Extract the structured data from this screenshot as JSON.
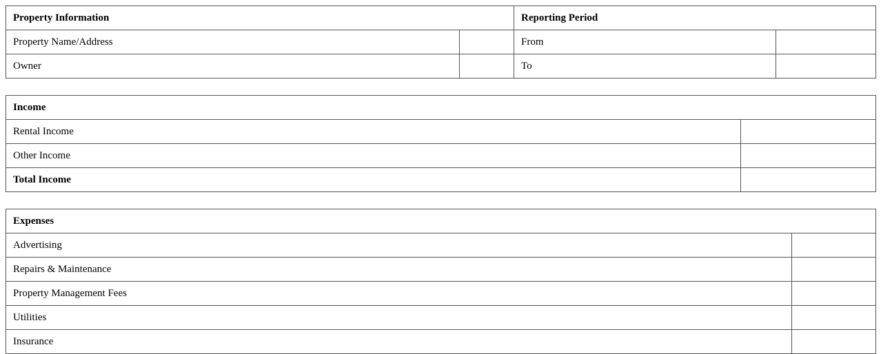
{
  "property_info": {
    "heading": "Property Information",
    "rows": [
      {
        "label": "Property Name/Address",
        "value": ""
      },
      {
        "label": "Owner",
        "value": ""
      }
    ]
  },
  "reporting_period": {
    "heading": "Reporting Period",
    "rows": [
      {
        "label": "From",
        "value": ""
      },
      {
        "label": "To",
        "value": ""
      }
    ]
  },
  "income": {
    "heading": "Income",
    "rows": [
      {
        "label": "Rental Income",
        "value": ""
      },
      {
        "label": "Other Income",
        "value": ""
      },
      {
        "label": "Total Income",
        "value": ""
      }
    ]
  },
  "expenses": {
    "heading": "Expenses",
    "rows": [
      {
        "label": "Advertising",
        "value": ""
      },
      {
        "label": "Repairs & Maintenance",
        "value": ""
      },
      {
        "label": "Property Management Fees",
        "value": ""
      },
      {
        "label": "Utilities",
        "value": ""
      },
      {
        "label": "Insurance",
        "value": ""
      }
    ]
  }
}
